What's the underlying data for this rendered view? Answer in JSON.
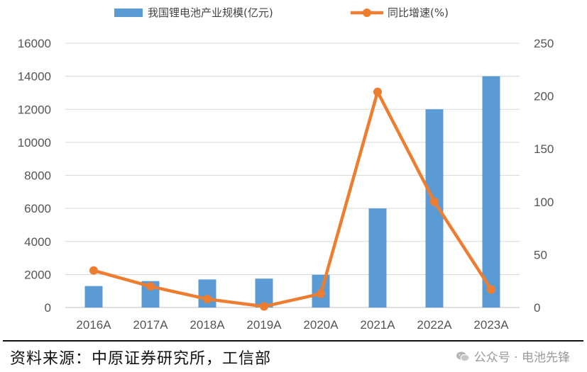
{
  "chart_data": {
    "type": "bar",
    "categories": [
      "2016A",
      "2017A",
      "2018A",
      "2019A",
      "2020A",
      "2021A",
      "2022A",
      "2023A"
    ],
    "series": [
      {
        "name": "我国锂电池产业规模(亿元)",
        "type": "bar",
        "axis": "left",
        "color": "#5B9BD5",
        "values": [
          1300,
          1600,
          1700,
          1750,
          1980,
          6000,
          12000,
          14000
        ]
      },
      {
        "name": "同比增速(%)",
        "type": "line",
        "axis": "right",
        "color": "#ED7D31",
        "values": [
          35,
          20,
          8,
          1,
          13,
          204,
          100,
          17
        ]
      }
    ],
    "left_axis": {
      "ylim": [
        0,
        16000
      ],
      "ticks": [
        0,
        2000,
        4000,
        6000,
        8000,
        10000,
        12000,
        14000,
        16000
      ]
    },
    "right_axis": {
      "ylim": [
        0,
        250
      ],
      "ticks": [
        0,
        50,
        100,
        150,
        200,
        250
      ]
    },
    "legend_position": "top",
    "grid": true
  },
  "footer": {
    "source": "资料来源：中原证券研究所，工信部",
    "watermark": "公众号 · 电池先锋",
    "watermark_icon": "wechat-icon"
  }
}
